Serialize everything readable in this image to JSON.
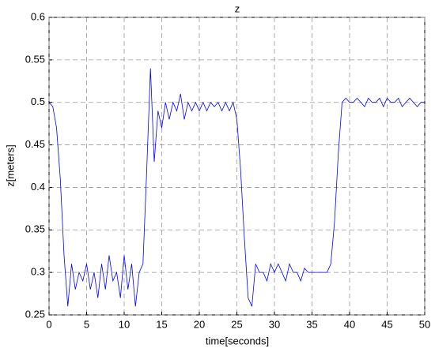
{
  "chart_data": {
    "type": "line",
    "title": "z",
    "xlabel": "time[seconds]",
    "ylabel": "z[meters]",
    "x": [
      0,
      0.5,
      1,
      1.5,
      2,
      2.5,
      3,
      3.5,
      4,
      4.5,
      5,
      5.5,
      6,
      6.5,
      7,
      7.5,
      8,
      8.5,
      9,
      9.5,
      10,
      10.5,
      11,
      11.5,
      12,
      12.5,
      13,
      13.5,
      14,
      14.5,
      15,
      15.5,
      16,
      16.5,
      17,
      17.5,
      18,
      18.5,
      19,
      19.5,
      20,
      20.5,
      21,
      21.5,
      22,
      22.5,
      23,
      23.5,
      24,
      24.5,
      25,
      25.5,
      26,
      26.5,
      27,
      27.5,
      28,
      28.5,
      29,
      29.5,
      30,
      30.5,
      31,
      31.5,
      32,
      32.5,
      33,
      33.5,
      34,
      34.5,
      35,
      35.5,
      36,
      36.5,
      37,
      37.5,
      38,
      38.5,
      39,
      39.5,
      40,
      40.5,
      41,
      41.5,
      42,
      42.5,
      43,
      43.5,
      44,
      44.5,
      45,
      45.5,
      46,
      46.5,
      47,
      47.5,
      48,
      48.5,
      49,
      49.5,
      50
    ],
    "series": [
      {
        "name": "z",
        "color": "#0000ff",
        "values": [
          0.5,
          0.495,
          0.47,
          0.41,
          0.32,
          0.26,
          0.31,
          0.28,
          0.3,
          0.29,
          0.31,
          0.28,
          0.3,
          0.27,
          0.31,
          0.28,
          0.32,
          0.29,
          0.3,
          0.27,
          0.32,
          0.28,
          0.31,
          0.26,
          0.3,
          0.31,
          0.42,
          0.54,
          0.43,
          0.49,
          0.47,
          0.5,
          0.48,
          0.5,
          0.49,
          0.51,
          0.48,
          0.5,
          0.49,
          0.5,
          0.49,
          0.5,
          0.49,
          0.5,
          0.495,
          0.5,
          0.49,
          0.5,
          0.49,
          0.5,
          0.48,
          0.42,
          0.34,
          0.27,
          0.26,
          0.31,
          0.3,
          0.3,
          0.29,
          0.31,
          0.3,
          0.31,
          0.3,
          0.29,
          0.31,
          0.3,
          0.3,
          0.29,
          0.305,
          0.3,
          0.3,
          0.3,
          0.3,
          0.3,
          0.3,
          0.31,
          0.36,
          0.44,
          0.5,
          0.505,
          0.5,
          0.5,
          0.505,
          0.5,
          0.495,
          0.505,
          0.5,
          0.5,
          0.505,
          0.495,
          0.505,
          0.5,
          0.5,
          0.505,
          0.495,
          0.5,
          0.505,
          0.5,
          0.495,
          0.5,
          0.5
        ]
      }
    ],
    "xlim": [
      0,
      50
    ],
    "ylim": [
      0.25,
      0.6
    ],
    "xticks": [
      0,
      5,
      10,
      15,
      20,
      25,
      30,
      35,
      40,
      45,
      50
    ],
    "yticks": [
      0.25,
      0.3,
      0.35,
      0.4,
      0.45,
      0.5,
      0.55,
      0.6
    ],
    "grid": true
  }
}
